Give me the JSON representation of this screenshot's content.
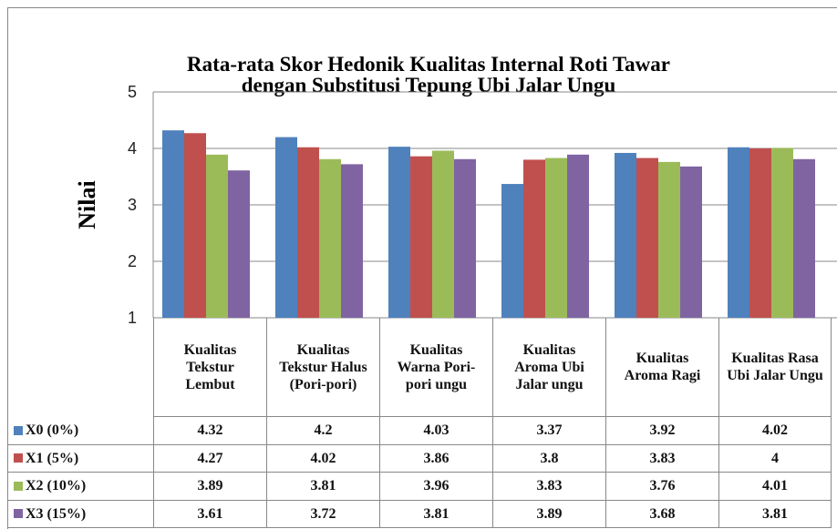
{
  "chart_data": {
    "type": "bar",
    "title": "Rata-rata Skor Hedonik Kualitas Internal Roti Tawar",
    "subtitle": "dengan Substitusi Tepung Ubi Jalar Ungu",
    "y_label": "Nilai",
    "categories": [
      "Kualitas Tekstur Lembut",
      "Kualitas Tekstur Halus (Pori-pori)",
      "Kualitas Warna Pori-pori ungu",
      "Kualitas Aroma Ubi Jalar ungu",
      "Kualitas Aroma Ragi",
      "Kualitas Rasa Ubi Jalar Ungu"
    ],
    "series": [
      {
        "name": "X0 (0%)",
        "color": "#4f81bd",
        "values": [
          4.32,
          4.2,
          4.03,
          3.37,
          3.92,
          4.02
        ]
      },
      {
        "name": "X1 (5%)",
        "color": "#c0504d",
        "values": [
          4.27,
          4.02,
          3.86,
          3.8,
          3.83,
          4
        ]
      },
      {
        "name": "X2 (10%)",
        "color": "#9bbb59",
        "values": [
          3.89,
          3.81,
          3.96,
          3.83,
          3.76,
          4.01
        ]
      },
      {
        "name": "X3 (15%)",
        "color": "#8064a2",
        "values": [
          3.61,
          3.72,
          3.81,
          3.89,
          3.68,
          3.81
        ]
      }
    ],
    "ylim": [
      1,
      5
    ],
    "yticks": [
      1,
      2,
      3,
      4,
      5
    ],
    "grid": true
  }
}
